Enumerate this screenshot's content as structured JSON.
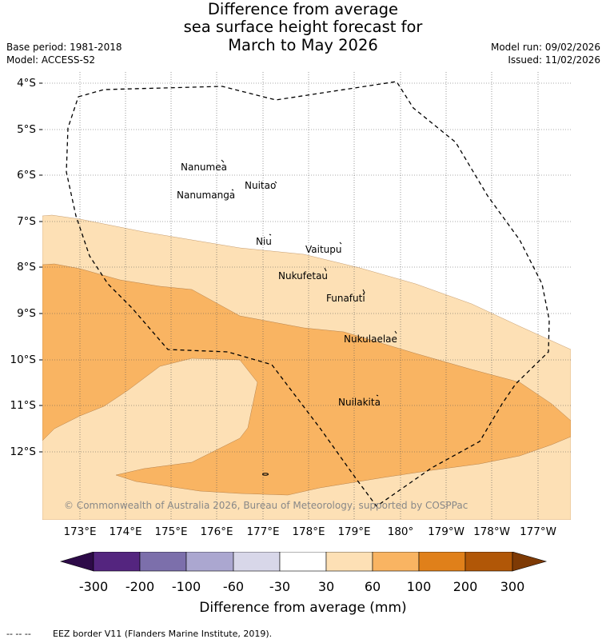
{
  "title": {
    "line1": "Difference from average",
    "line2": "sea surface height forecast for",
    "line3": "March to May 2026"
  },
  "meta": {
    "base_period": "Base period: 1981-2018",
    "model": "Model: ACCESS-S2",
    "model_run": "Model run: 09/02/2026",
    "issued": "Issued: 11/02/2026"
  },
  "map": {
    "latitude_labels": [
      "4°S",
      "5°S",
      "6°S",
      "7°S",
      "8°S",
      "9°S",
      "10°S",
      "11°S",
      "12°S"
    ],
    "longitude_labels": [
      "173°E",
      "174°E",
      "175°E",
      "176°E",
      "177°E",
      "178°E",
      "179°E",
      "180°",
      "179°W",
      "178°W",
      "177°W"
    ],
    "islands": [
      "Nanumea",
      "Nuitao",
      "Nanumanga",
      "Niu",
      "Vaitupu",
      "Nukufetau",
      "Funafuti",
      "Nukulaelae",
      "Nuilakita"
    ],
    "copyright": "© Commonwealth of Australia 2026, Bureau of Meteorology, supported by COSPPac",
    "colors": {
      "band_30_60": "#fde0b5",
      "band_60_100": "#f9b462",
      "eez_border": "#000000"
    }
  },
  "colorbar": {
    "title": "Difference from average (mm)",
    "tick_labels": [
      "-300",
      "-200",
      "-100",
      "-60",
      "-30",
      "30",
      "60",
      "100",
      "200",
      "300"
    ],
    "colors": [
      "#2d0a48",
      "#54257f",
      "#7c6fab",
      "#aba7d0",
      "#d8d7e9",
      "#ffffff",
      "#fde0b5",
      "#f9b462",
      "#e0801a",
      "#b15707",
      "#7e3a05"
    ]
  },
  "footer": {
    "legend_marker": "-- -- --",
    "legend_text": "EEZ border V11 (Flanders Marine Institute, 2019)."
  }
}
